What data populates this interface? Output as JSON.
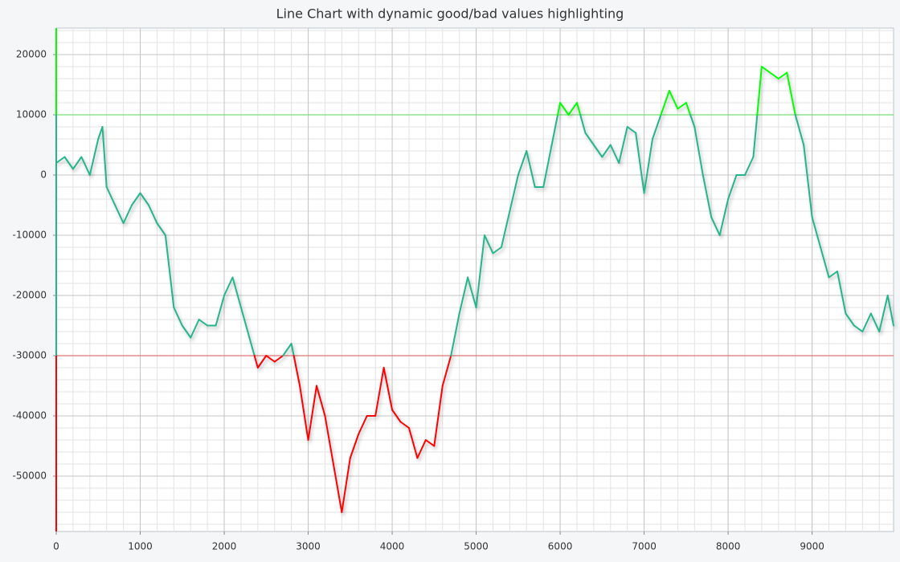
{
  "chart_data": {
    "type": "line",
    "title": "Line Chart with dynamic good/bad values highlighting",
    "x": [
      0,
      100,
      200,
      300,
      400,
      500,
      550,
      600,
      700,
      800,
      900,
      1000,
      1100,
      1200,
      1300,
      1400,
      1500,
      1600,
      1700,
      1800,
      1900,
      2000,
      2100,
      2200,
      2300,
      2400,
      2500,
      2600,
      2700,
      2800,
      2900,
      3000,
      3100,
      3200,
      3300,
      3400,
      3500,
      3600,
      3700,
      3800,
      3900,
      4000,
      4100,
      4200,
      4300,
      4400,
      4500,
      4600,
      4700,
      4800,
      4900,
      5000,
      5100,
      5200,
      5300,
      5400,
      5500,
      5600,
      5700,
      5800,
      5900,
      6000,
      6100,
      6200,
      6300,
      6400,
      6500,
      6600,
      6700,
      6800,
      6900,
      7000,
      7100,
      7200,
      7300,
      7400,
      7500,
      7600,
      7700,
      7800,
      7900,
      8000,
      8100,
      8200,
      8300,
      8400,
      8500,
      8600,
      8700,
      8800,
      8900,
      9000,
      9100,
      9200,
      9300,
      9400,
      9500,
      9600,
      9700,
      9800,
      9900,
      9970
    ],
    "values": [
      2000,
      3000,
      1000,
      3000,
      0,
      6000,
      8000,
      -2000,
      -5000,
      -8000,
      -5000,
      -3000,
      -5000,
      -8000,
      -10000,
      -22000,
      -25000,
      -27000,
      -24000,
      -25000,
      -25000,
      -20000,
      -17000,
      -22000,
      -27000,
      -32000,
      -30000,
      -31000,
      -30000,
      -28000,
      -35000,
      -44000,
      -35000,
      -40000,
      -48000,
      -56000,
      -47000,
      -43000,
      -40000,
      -40000,
      -32000,
      -39000,
      -41000,
      -42000,
      -47000,
      -44000,
      -45000,
      -35000,
      -30000,
      -23000,
      -17000,
      -22000,
      -10000,
      -13000,
      -12000,
      -6000,
      0,
      4000,
      -2000,
      -2000,
      5000,
      12000,
      10000,
      12000,
      7000,
      5000,
      3000,
      5000,
      2000,
      8000,
      7000,
      -3000,
      6000,
      10000,
      14000,
      11000,
      12000,
      8000,
      0,
      -7000,
      -10000,
      -4000,
      0,
      0,
      3000,
      18000,
      17000,
      16000,
      17000,
      10000,
      5000,
      -7000,
      -12000,
      -17000,
      -16000,
      -23000,
      -25000,
      -26000,
      -23000,
      -26000,
      -20000,
      -25000
    ],
    "color": "#26b48c",
    "good_color": "#00ff00",
    "bad_color": "#ff0000",
    "good_threshold": 10000,
    "bad_threshold": -30000,
    "xlim": [
      0,
      9970
    ],
    "ylim": [
      -59200,
      24400
    ],
    "xticks": [
      0,
      1000,
      2000,
      3000,
      4000,
      5000,
      6000,
      7000,
      8000,
      9000
    ],
    "yticks": [
      -50000,
      -40000,
      -30000,
      -20000,
      -10000,
      0,
      10000,
      20000
    ],
    "grid": true
  }
}
